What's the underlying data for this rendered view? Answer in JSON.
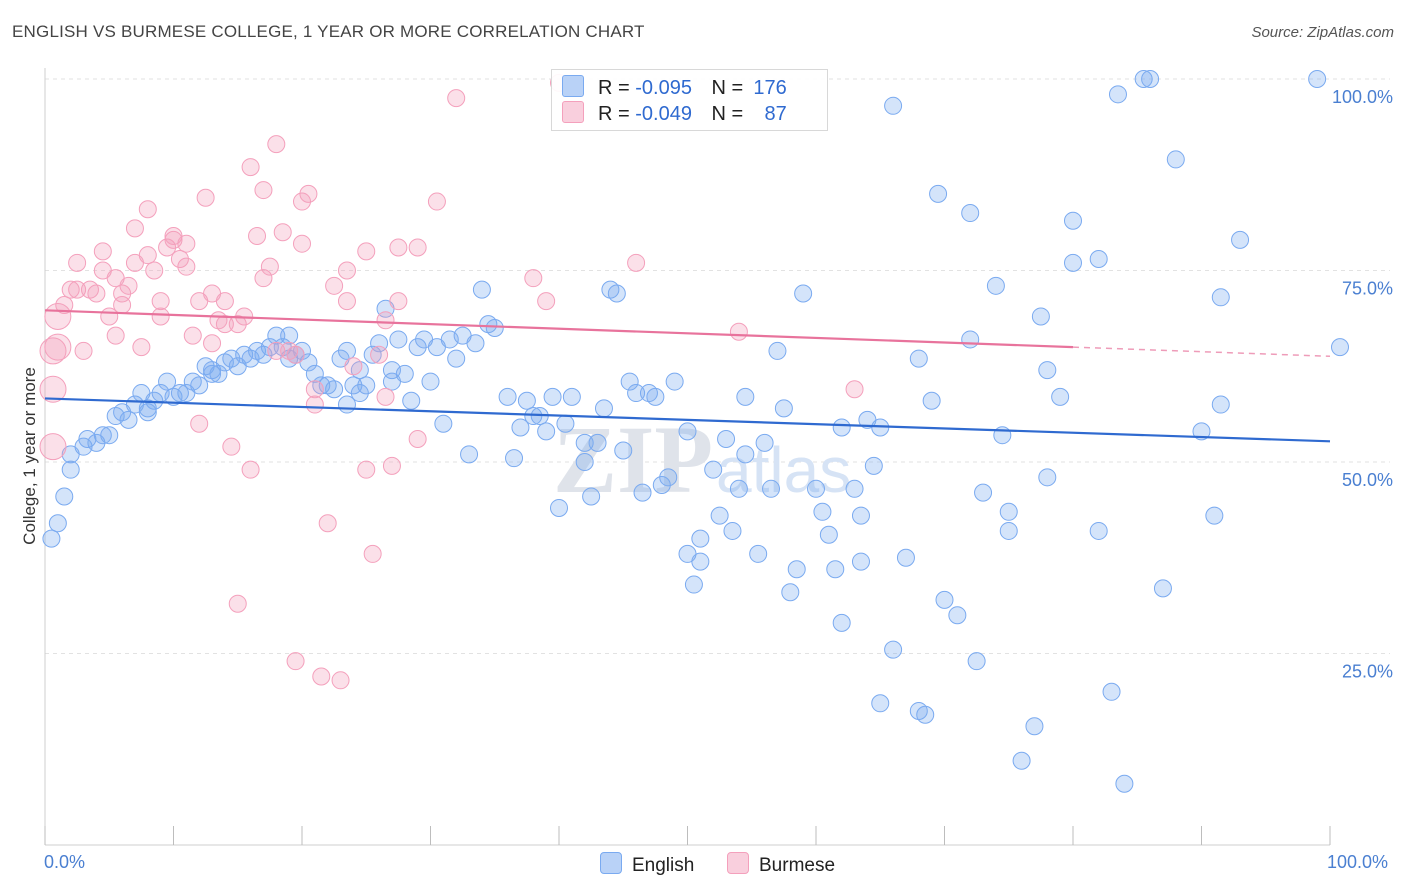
{
  "title": "ENGLISH VS BURMESE COLLEGE, 1 YEAR OR MORE CORRELATION CHART",
  "source": "Source: ZipAtlas.com",
  "colors": {
    "english": "#7aaaf0",
    "english_line": "#2f6ad0",
    "burmese": "#f4a0bc",
    "burmese_line": "#e8739c",
    "axis_text": "#4a7fd1"
  },
  "legend": {
    "english": {
      "r_label": "R =",
      "r_value": "-0.095",
      "n_label": "N =",
      "n_value": "176"
    },
    "burmese": {
      "r_label": "R =",
      "r_value": "-0.049",
      "n_label": "N =",
      "n_value": "87"
    }
  },
  "chart_data": {
    "type": "scatter",
    "title": "ENGLISH VS BURMESE COLLEGE, 1 YEAR OR MORE CORRELATION CHART",
    "ylabel": "College, 1 year or more",
    "xlabel": "",
    "xlim": [
      0,
      100
    ],
    "ylim": [
      0,
      100
    ],
    "x_tick_labels": [
      "0.0%",
      "100.0%"
    ],
    "y_tick_labels": [
      "25.0%",
      "50.0%",
      "75.0%",
      "100.0%"
    ],
    "y_ticks": [
      25,
      50,
      75,
      100
    ],
    "grid": true,
    "legend_position": "top-center",
    "watermark": "ZIPatlas",
    "series": [
      {
        "name": "English",
        "r": -0.095,
        "n": 176,
        "trend": {
          "x": [
            0,
            100
          ],
          "y": [
            58.3,
            52.7
          ]
        },
        "points": [
          [
            0.5,
            40
          ],
          [
            1,
            42
          ],
          [
            1.5,
            45.5
          ],
          [
            2,
            49
          ],
          [
            2,
            51
          ],
          [
            3,
            52
          ],
          [
            3.3,
            53
          ],
          [
            4,
            52.5
          ],
          [
            4.5,
            53.5
          ],
          [
            5,
            53.5
          ],
          [
            5.5,
            56
          ],
          [
            6,
            56.5
          ],
          [
            6.5,
            55.5
          ],
          [
            7,
            57.5
          ],
          [
            7.5,
            59
          ],
          [
            8,
            57
          ],
          [
            8,
            56.5
          ],
          [
            8.5,
            58
          ],
          [
            9,
            59
          ],
          [
            9.5,
            60.5
          ],
          [
            10,
            58.5
          ],
          [
            10.5,
            59
          ],
          [
            11,
            59
          ],
          [
            11.5,
            60.5
          ],
          [
            12,
            60
          ],
          [
            12.5,
            62.5
          ],
          [
            13,
            62
          ],
          [
            13,
            61.5
          ],
          [
            13.5,
            61.5
          ],
          [
            14,
            63
          ],
          [
            14.5,
            63.5
          ],
          [
            15,
            62.5
          ],
          [
            15.5,
            64
          ],
          [
            16,
            63.5
          ],
          [
            16.5,
            64.5
          ],
          [
            17,
            64
          ],
          [
            17.5,
            65
          ],
          [
            18,
            66.5
          ],
          [
            18.5,
            65
          ],
          [
            19,
            66.5
          ],
          [
            19,
            63.5
          ],
          [
            19.5,
            64
          ],
          [
            20,
            64.5
          ],
          [
            20.5,
            63
          ],
          [
            21,
            61.5
          ],
          [
            21.5,
            60
          ],
          [
            22,
            60
          ],
          [
            22.5,
            59.5
          ],
          [
            23,
            63.5
          ],
          [
            23.5,
            64.5
          ],
          [
            23.5,
            57.5
          ],
          [
            24,
            60
          ],
          [
            24.5,
            62
          ],
          [
            24.5,
            59
          ],
          [
            25,
            60
          ],
          [
            25.5,
            64
          ],
          [
            26,
            65.5
          ],
          [
            26.5,
            70
          ],
          [
            27,
            62
          ],
          [
            27,
            60.5
          ],
          [
            27.5,
            66
          ],
          [
            28,
            61.5
          ],
          [
            28.5,
            58
          ],
          [
            29,
            65
          ],
          [
            29.5,
            66
          ],
          [
            30,
            60.5
          ],
          [
            30.5,
            65
          ],
          [
            31,
            55
          ],
          [
            31.5,
            66
          ],
          [
            32,
            63.5
          ],
          [
            32.5,
            66.5
          ],
          [
            33,
            51
          ],
          [
            33.5,
            65.5
          ],
          [
            34,
            72.5
          ],
          [
            34.5,
            68
          ],
          [
            35,
            67.5
          ],
          [
            36,
            58.5
          ],
          [
            36.5,
            50.5
          ],
          [
            37,
            54.5
          ],
          [
            37.5,
            58
          ],
          [
            38,
            56
          ],
          [
            38.5,
            56
          ],
          [
            39,
            54
          ],
          [
            39.5,
            58.5
          ],
          [
            40,
            44
          ],
          [
            40.5,
            55
          ],
          [
            41,
            58.5
          ],
          [
            42,
            50
          ],
          [
            42,
            52.5
          ],
          [
            42.5,
            45.5
          ],
          [
            43,
            52.5
          ],
          [
            43.5,
            57
          ],
          [
            44,
            72.5
          ],
          [
            44.5,
            72
          ],
          [
            45,
            51.5
          ],
          [
            45.5,
            60.5
          ],
          [
            46,
            59
          ],
          [
            46.5,
            46
          ],
          [
            47,
            59
          ],
          [
            47.5,
            58.5
          ],
          [
            48,
            47
          ],
          [
            48.5,
            48
          ],
          [
            49,
            60.5
          ],
          [
            50,
            54
          ],
          [
            50,
            38
          ],
          [
            50.5,
            34
          ],
          [
            51,
            40
          ],
          [
            51,
            37
          ],
          [
            52,
            49
          ],
          [
            52.5,
            43
          ],
          [
            53,
            53
          ],
          [
            53.5,
            41
          ],
          [
            54,
            46.5
          ],
          [
            54.5,
            51
          ],
          [
            54.5,
            58.5
          ],
          [
            55.5,
            38
          ],
          [
            56,
            52.5
          ],
          [
            56.5,
            46.5
          ],
          [
            57,
            64.5
          ],
          [
            57.5,
            57
          ],
          [
            58,
            33
          ],
          [
            58.5,
            36
          ],
          [
            59,
            72
          ],
          [
            60,
            46.5
          ],
          [
            60.5,
            43.5
          ],
          [
            61,
            40.5
          ],
          [
            61.5,
            36
          ],
          [
            62,
            29
          ],
          [
            62,
            54.5
          ],
          [
            63,
            46.5
          ],
          [
            63.5,
            43
          ],
          [
            63.5,
            37
          ],
          [
            64,
            55.5
          ],
          [
            64.5,
            49.5
          ],
          [
            65,
            54.5
          ],
          [
            65,
            18.5
          ],
          [
            66,
            96.5
          ],
          [
            66,
            25.5
          ],
          [
            67,
            37.5
          ],
          [
            68,
            63.5
          ],
          [
            68,
            17.5
          ],
          [
            68.5,
            17
          ],
          [
            69,
            58
          ],
          [
            69.5,
            85
          ],
          [
            70,
            32
          ],
          [
            71,
            30
          ],
          [
            72,
            82.5
          ],
          [
            72,
            66
          ],
          [
            72.5,
            24
          ],
          [
            73,
            46
          ],
          [
            74,
            73
          ],
          [
            74.5,
            53.5
          ],
          [
            75,
            41
          ],
          [
            75,
            43.5
          ],
          [
            76,
            11
          ],
          [
            77,
            15.5
          ],
          [
            77.5,
            69
          ],
          [
            78,
            48
          ],
          [
            78,
            62
          ],
          [
            79,
            58.5
          ],
          [
            80,
            81.5
          ],
          [
            80,
            76
          ],
          [
            82,
            76.5
          ],
          [
            82,
            41
          ],
          [
            83,
            20
          ],
          [
            83.5,
            98
          ],
          [
            84,
            8
          ],
          [
            85.5,
            100
          ],
          [
            86,
            100
          ],
          [
            87,
            33.5
          ],
          [
            88,
            89.5
          ],
          [
            90,
            54
          ],
          [
            91,
            43
          ],
          [
            91.5,
            71.5
          ],
          [
            91.5,
            57.5
          ],
          [
            93,
            79
          ],
          [
            99,
            100
          ],
          [
            101.5,
            65
          ]
        ]
      },
      {
        "name": "Burmese",
        "r": -0.049,
        "n": 87,
        "trend": {
          "x": [
            0,
            80
          ],
          "y": [
            69.8,
            65.0
          ]
        },
        "trend_dashed": {
          "x": [
            80,
            100
          ],
          "y": [
            65.0,
            63.8
          ]
        },
        "points": [
          [
            0.5,
            52
          ],
          [
            0.5,
            59.5
          ],
          [
            0.5,
            64.5
          ],
          [
            1,
            65
          ],
          [
            1,
            69
          ],
          [
            1.5,
            70.5
          ],
          [
            2,
            72.5
          ],
          [
            2.5,
            72.5
          ],
          [
            2.5,
            76
          ],
          [
            3,
            64.5
          ],
          [
            3.5,
            72.5
          ],
          [
            4,
            72
          ],
          [
            4.5,
            75
          ],
          [
            4.5,
            77.5
          ],
          [
            5,
            69
          ],
          [
            5.5,
            74
          ],
          [
            5.5,
            66.5
          ],
          [
            6,
            72
          ],
          [
            6,
            70.5
          ],
          [
            6.5,
            73
          ],
          [
            7,
            76
          ],
          [
            7,
            80.5
          ],
          [
            7.5,
            65
          ],
          [
            8,
            83
          ],
          [
            8,
            77
          ],
          [
            8.5,
            75
          ],
          [
            9,
            71
          ],
          [
            9,
            69
          ],
          [
            9.5,
            78
          ],
          [
            10,
            79
          ],
          [
            10,
            79.5
          ],
          [
            10.5,
            76.5
          ],
          [
            11,
            75.5
          ],
          [
            11,
            78.5
          ],
          [
            11.5,
            66.5
          ],
          [
            12,
            55
          ],
          [
            12,
            71
          ],
          [
            12.5,
            84.5
          ],
          [
            13,
            72
          ],
          [
            13,
            65.5
          ],
          [
            13.5,
            68.5
          ],
          [
            14,
            68
          ],
          [
            14,
            71
          ],
          [
            14.5,
            52
          ],
          [
            15,
            31.5
          ],
          [
            15,
            68
          ],
          [
            15.5,
            69
          ],
          [
            16,
            88.5
          ],
          [
            16,
            49
          ],
          [
            16.5,
            79.5
          ],
          [
            17,
            85.5
          ],
          [
            17,
            74
          ],
          [
            17.5,
            75.5
          ],
          [
            18,
            64.5
          ],
          [
            18,
            91.5
          ],
          [
            18.5,
            80
          ],
          [
            19,
            64.5
          ],
          [
            19.5,
            64
          ],
          [
            19.5,
            24
          ],
          [
            20,
            84
          ],
          [
            20,
            78.5
          ],
          [
            20.5,
            85
          ],
          [
            21,
            57.5
          ],
          [
            21,
            59.5
          ],
          [
            21.5,
            22
          ],
          [
            22,
            42
          ],
          [
            22.5,
            73
          ],
          [
            23,
            21.5
          ],
          [
            23.5,
            75
          ],
          [
            23.5,
            71
          ],
          [
            24,
            62.5
          ],
          [
            25,
            77.5
          ],
          [
            25,
            49
          ],
          [
            25.5,
            38
          ],
          [
            26,
            64
          ],
          [
            26.5,
            58.5
          ],
          [
            26.5,
            68.5
          ],
          [
            27,
            49.5
          ],
          [
            27.5,
            78
          ],
          [
            27.5,
            71
          ],
          [
            29,
            53
          ],
          [
            29,
            78
          ],
          [
            30.5,
            84
          ],
          [
            32,
            97.5
          ],
          [
            38,
            74
          ],
          [
            39,
            71
          ],
          [
            40,
            99.5
          ],
          [
            46,
            76
          ],
          [
            54,
            67
          ],
          [
            63,
            59.5
          ]
        ]
      }
    ]
  },
  "bottom_legend": {
    "english_label": "English",
    "burmese_label": "Burmese"
  }
}
